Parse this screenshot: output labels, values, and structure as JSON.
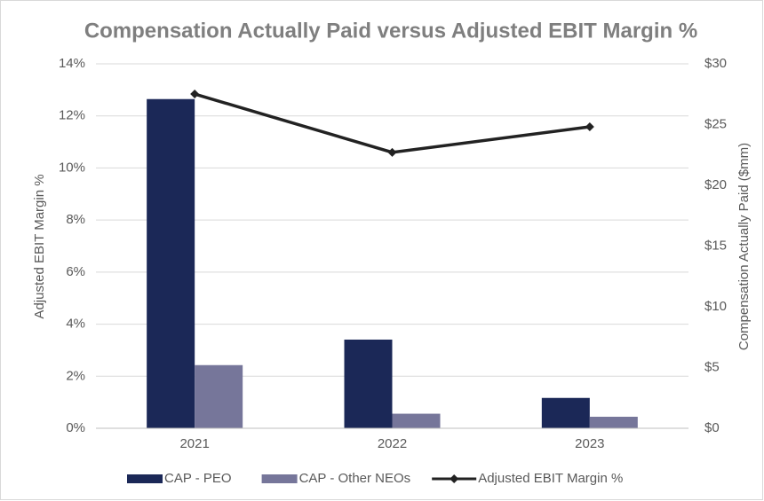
{
  "chart_data": {
    "type": "bar_line",
    "title": "Compensation Actually Paid versus Adjusted EBIT Margin %",
    "categories": [
      "2021",
      "2022",
      "2023"
    ],
    "y_label": "Adjusted EBIT Margin %",
    "y2_label": "Compensation Actually Paid ($mm)",
    "ylim": [
      0,
      14
    ],
    "yticks": [
      {
        "value": 0,
        "label": "0%"
      },
      {
        "value": 2,
        "label": "2%"
      },
      {
        "value": 4,
        "label": "4%"
      },
      {
        "value": 6,
        "label": "6%"
      },
      {
        "value": 8,
        "label": "8%"
      },
      {
        "value": 10,
        "label": "10%"
      },
      {
        "value": 12,
        "label": "12%"
      },
      {
        "value": 14,
        "label": "14%"
      }
    ],
    "y2lim": [
      0,
      30
    ],
    "y2ticks": [
      {
        "value": 0,
        "label": "$0"
      },
      {
        "value": 5,
        "label": "$5"
      },
      {
        "value": 10,
        "label": "$10"
      },
      {
        "value": 15,
        "label": "$15"
      },
      {
        "value": 20,
        "label": "$20"
      },
      {
        "value": 25,
        "label": "$25"
      },
      {
        "value": 30,
        "label": "$30"
      }
    ],
    "grid": true,
    "legend": "bottom",
    "series": [
      {
        "name": "CAP - PEO",
        "type": "bar",
        "axis": "y2",
        "color": "#1b2857",
        "values": [
          27.1,
          7.3,
          2.5
        ]
      },
      {
        "name": "CAP - Other NEOs",
        "type": "bar",
        "axis": "y2",
        "color": "#76769a",
        "values": [
          5.2,
          1.2,
          0.95
        ]
      },
      {
        "name": "Adjusted EBIT Margin %",
        "type": "line",
        "axis": "y",
        "color": "#222222",
        "values": [
          12.84,
          10.6,
          11.58
        ]
      }
    ]
  }
}
